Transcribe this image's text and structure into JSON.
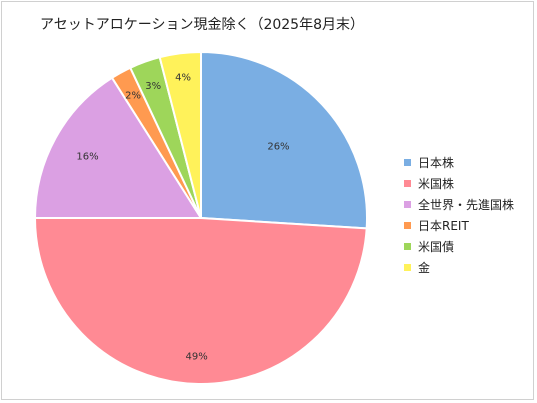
{
  "chart_data": {
    "type": "pie",
    "title": "アセットアロケーション現金除く（2025年8月末）",
    "categories": [
      "日本株",
      "米国株",
      "全世界・先進国株",
      "日本REIT",
      "米国債",
      "金"
    ],
    "values": [
      26,
      49,
      16,
      2,
      3,
      4
    ],
    "data_labels": [
      "26%",
      "49%",
      "16%",
      "2%",
      "3%",
      "4%"
    ],
    "colors": [
      "#7aaee3",
      "#ff8a94",
      "#dba0e3",
      "#ff9a50",
      "#9ed65a",
      "#fff25a"
    ],
    "start_angle_deg": 0,
    "direction": "clockwise",
    "legend": "right"
  }
}
